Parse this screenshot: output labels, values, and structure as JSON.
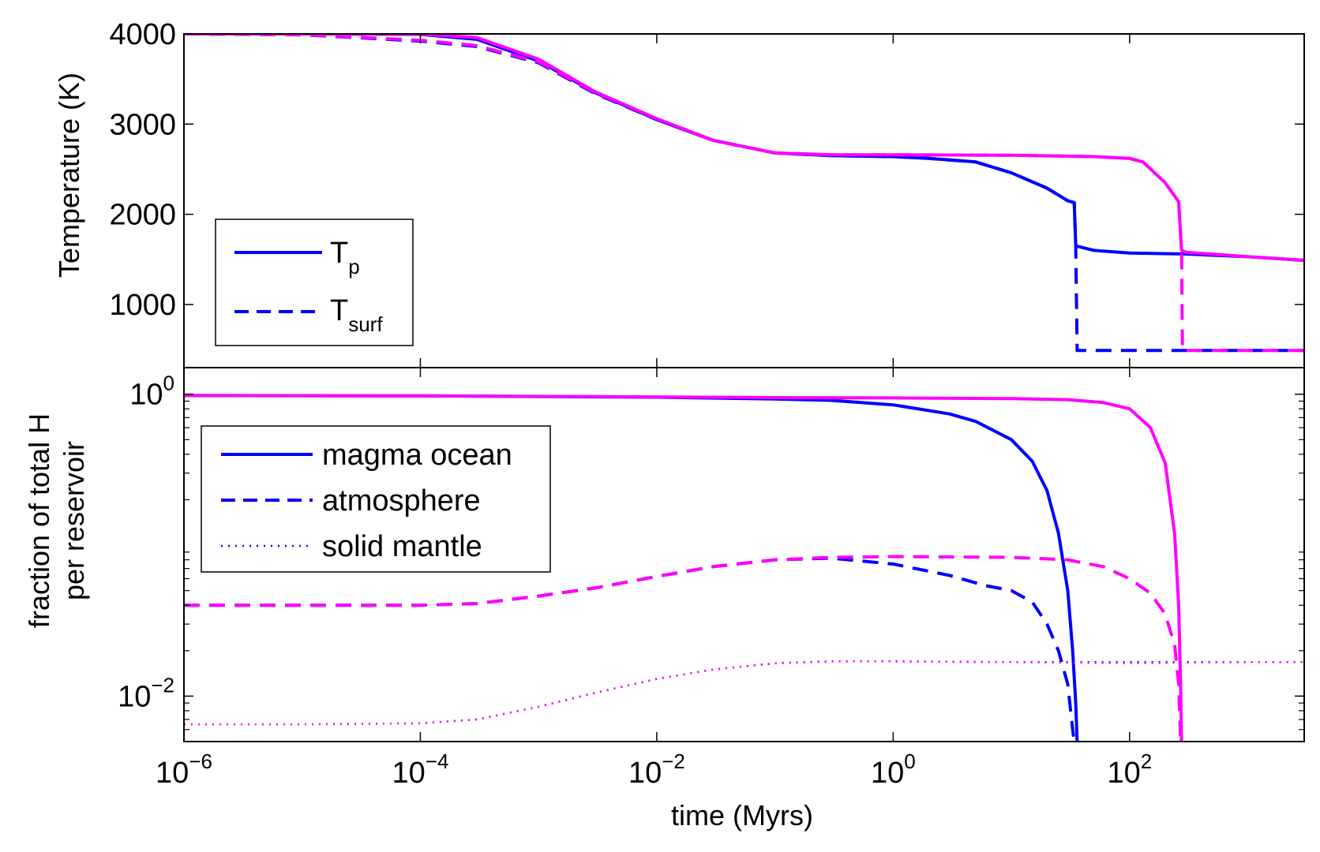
{
  "chart_data": [
    {
      "type": "line",
      "title": "",
      "xlabel": "",
      "ylabel": "Temperature (K)",
      "xscale": "log",
      "xlim": [
        1e-06,
        3000
      ],
      "ylim": [
        300,
        4000
      ],
      "yticks": [
        1000,
        2000,
        3000,
        4000
      ],
      "ytick_labels": [
        "1000",
        "2000",
        "3000",
        "4000"
      ],
      "grid": false,
      "legend_position": "lower-left",
      "legend": [
        {
          "label": "T",
          "sub": "p",
          "style": "solid"
        },
        {
          "label": "T",
          "sub": "surf",
          "style": "dashed"
        }
      ],
      "colors": {
        "case_a": "#0000ff",
        "case_b": "#ff00ff"
      },
      "series": [
        {
          "color": "#0000ff",
          "style": "solid",
          "points": [
            [
              1e-06,
              4000
            ],
            [
              1e-05,
              4000
            ],
            [
              0.0001,
              3995
            ],
            [
              0.0003,
              3940
            ],
            [
              0.001,
              3700
            ],
            [
              0.003,
              3350
            ],
            [
              0.01,
              3050
            ],
            [
              0.03,
              2820
            ],
            [
              0.1,
              2680
            ],
            [
              0.3,
              2650
            ],
            [
              1,
              2640
            ],
            [
              2,
              2620
            ],
            [
              5,
              2580
            ],
            [
              10,
              2460
            ],
            [
              20,
              2290
            ],
            [
              30,
              2150
            ],
            [
              34,
              2130
            ],
            [
              35,
              1650
            ],
            [
              50,
              1600
            ],
            [
              100,
              1570
            ],
            [
              300,
              1560
            ],
            [
              1000,
              1530
            ],
            [
              3000,
              1490
            ]
          ]
        },
        {
          "color": "#0000ff",
          "style": "dashed",
          "points": [
            [
              1e-06,
              4000
            ],
            [
              1e-05,
              3990
            ],
            [
              0.0001,
              3920
            ],
            [
              0.0003,
              3860
            ],
            [
              0.001,
              3680
            ],
            [
              0.003,
              3340
            ],
            [
              0.01,
              3050
            ],
            [
              0.03,
              2820
            ],
            [
              0.1,
              2680
            ],
            [
              0.3,
              2650
            ],
            [
              1,
              2640
            ],
            [
              2,
              2620
            ],
            [
              5,
              2580
            ],
            [
              10,
              2460
            ],
            [
              20,
              2290
            ],
            [
              30,
              2150
            ],
            [
              34,
              2130
            ],
            [
              35,
              1650
            ],
            [
              36,
              490
            ],
            [
              100,
              490
            ],
            [
              1000,
              490
            ],
            [
              3000,
              490
            ]
          ]
        },
        {
          "color": "#ff00ff",
          "style": "solid",
          "points": [
            [
              1e-06,
              4000
            ],
            [
              1e-05,
              4000
            ],
            [
              0.0001,
              3998
            ],
            [
              0.0003,
              3960
            ],
            [
              0.001,
              3720
            ],
            [
              0.003,
              3360
            ],
            [
              0.01,
              3060
            ],
            [
              0.03,
              2820
            ],
            [
              0.1,
              2680
            ],
            [
              0.3,
              2660
            ],
            [
              1,
              2660
            ],
            [
              10,
              2655
            ],
            [
              50,
              2640
            ],
            [
              100,
              2620
            ],
            [
              130,
              2580
            ],
            [
              200,
              2350
            ],
            [
              260,
              2140
            ],
            [
              275,
              1600
            ],
            [
              300,
              1580
            ],
            [
              1000,
              1530
            ],
            [
              3000,
              1490
            ]
          ]
        },
        {
          "color": "#ff00ff",
          "style": "dashed",
          "points": [
            [
              1e-06,
              4000
            ],
            [
              1e-05,
              3990
            ],
            [
              0.0001,
              3930
            ],
            [
              0.0003,
              3870
            ],
            [
              0.001,
              3690
            ],
            [
              0.003,
              3350
            ],
            [
              0.01,
              3060
            ],
            [
              0.03,
              2820
            ],
            [
              0.1,
              2680
            ],
            [
              0.3,
              2660
            ],
            [
              1,
              2660
            ],
            [
              10,
              2655
            ],
            [
              50,
              2640
            ],
            [
              100,
              2620
            ],
            [
              130,
              2580
            ],
            [
              200,
              2350
            ],
            [
              260,
              2140
            ],
            [
              275,
              1600
            ],
            [
              280,
              490
            ],
            [
              1000,
              490
            ],
            [
              3000,
              490
            ]
          ]
        }
      ]
    },
    {
      "type": "line",
      "title": "",
      "xlabel": "time (Myrs)",
      "ylabel": "fraction of total H\nper reservoir",
      "xscale": "log",
      "yscale": "log",
      "xlim": [
        1e-06,
        3000
      ],
      "ylim": [
        0.005,
        1.5
      ],
      "xticks": [
        1e-06,
        0.0001,
        0.01,
        1,
        100
      ],
      "xtick_labels": [
        {
          "base": "10",
          "exp": "−6"
        },
        {
          "base": "10",
          "exp": "−4"
        },
        {
          "base": "10",
          "exp": "−2"
        },
        {
          "base": "10",
          "exp": "0"
        },
        {
          "base": "10",
          "exp": "2"
        }
      ],
      "yticks": [
        0.01,
        1
      ],
      "ytick_labels": [
        {
          "base": "10",
          "exp": "−2"
        },
        {
          "base": "10",
          "exp": "0"
        }
      ],
      "grid": false,
      "legend_position": "upper-left",
      "legend": [
        {
          "label": "magma ocean",
          "style": "solid"
        },
        {
          "label": "atmosphere",
          "style": "dashed"
        },
        {
          "label": "solid mantle",
          "style": "dotted"
        }
      ],
      "series": [
        {
          "color": "#0000ff",
          "style": "solid",
          "points": [
            [
              1e-06,
              0.98
            ],
            [
              0.0001,
              0.975
            ],
            [
              0.01,
              0.955
            ],
            [
              0.1,
              0.93
            ],
            [
              0.3,
              0.91
            ],
            [
              1,
              0.85
            ],
            [
              3,
              0.74
            ],
            [
              5,
              0.66
            ],
            [
              10,
              0.5
            ],
            [
              15,
              0.36
            ],
            [
              20,
              0.23
            ],
            [
              25,
              0.12
            ],
            [
              30,
              0.05
            ],
            [
              33,
              0.02
            ],
            [
              35,
              0.009
            ],
            [
              36,
              0.005
            ]
          ]
        },
        {
          "color": "#0000ff",
          "style": "dashed",
          "points": [
            [
              1e-06,
              0.04
            ],
            [
              1e-05,
              0.04
            ],
            [
              0.0001,
              0.04
            ],
            [
              0.0003,
              0.041
            ],
            [
              0.001,
              0.046
            ],
            [
              0.003,
              0.052
            ],
            [
              0.01,
              0.062
            ],
            [
              0.03,
              0.072
            ],
            [
              0.1,
              0.08
            ],
            [
              0.3,
              0.082
            ],
            [
              1,
              0.075
            ],
            [
              3,
              0.063
            ],
            [
              6,
              0.054
            ],
            [
              10,
              0.05
            ],
            [
              15,
              0.042
            ],
            [
              20,
              0.03
            ],
            [
              25,
              0.02
            ],
            [
              30,
              0.012
            ],
            [
              33,
              0.006
            ],
            [
              34,
              0.005
            ]
          ]
        },
        {
          "color": "#0000ff",
          "style": "dotted",
          "points": [
            [
              1e-06,
              0.0065
            ],
            [
              1e-05,
              0.0065
            ],
            [
              0.0001,
              0.0066
            ],
            [
              0.0003,
              0.007
            ],
            [
              0.001,
              0.0085
            ],
            [
              0.003,
              0.0105
            ],
            [
              0.01,
              0.013
            ],
            [
              0.03,
              0.015
            ],
            [
              0.1,
              0.0165
            ],
            [
              0.3,
              0.017
            ],
            [
              1,
              0.017
            ],
            [
              10,
              0.0168
            ],
            [
              30,
              0.0168
            ],
            [
              100,
              0.0168
            ],
            [
              1000,
              0.0168
            ],
            [
              3000,
              0.0168
            ]
          ]
        },
        {
          "color": "#ff00ff",
          "style": "solid",
          "points": [
            [
              1e-06,
              0.98
            ],
            [
              0.0001,
              0.975
            ],
            [
              0.01,
              0.96
            ],
            [
              0.1,
              0.95
            ],
            [
              1,
              0.945
            ],
            [
              10,
              0.935
            ],
            [
              30,
              0.92
            ],
            [
              60,
              0.88
            ],
            [
              100,
              0.8
            ],
            [
              150,
              0.6
            ],
            [
              200,
              0.35
            ],
            [
              240,
              0.12
            ],
            [
              260,
              0.04
            ],
            [
              270,
              0.012
            ],
            [
              275,
              0.005
            ]
          ]
        },
        {
          "color": "#ff00ff",
          "style": "dashed",
          "points": [
            [
              1e-06,
              0.04
            ],
            [
              1e-05,
              0.04
            ],
            [
              0.0001,
              0.04
            ],
            [
              0.0003,
              0.041
            ],
            [
              0.001,
              0.046
            ],
            [
              0.003,
              0.052
            ],
            [
              0.01,
              0.062
            ],
            [
              0.03,
              0.072
            ],
            [
              0.1,
              0.08
            ],
            [
              0.3,
              0.083
            ],
            [
              1,
              0.084
            ],
            [
              10,
              0.083
            ],
            [
              30,
              0.08
            ],
            [
              60,
              0.072
            ],
            [
              100,
              0.06
            ],
            [
              150,
              0.048
            ],
            [
              200,
              0.035
            ],
            [
              240,
              0.022
            ],
            [
              260,
              0.012
            ],
            [
              270,
              0.005
            ]
          ]
        },
        {
          "color": "#ff00ff",
          "style": "dotted",
          "points": [
            [
              1e-06,
              0.0065
            ],
            [
              1e-05,
              0.0065
            ],
            [
              0.0001,
              0.0066
            ],
            [
              0.0003,
              0.007
            ],
            [
              0.001,
              0.0085
            ],
            [
              0.003,
              0.0105
            ],
            [
              0.01,
              0.013
            ],
            [
              0.03,
              0.015
            ],
            [
              0.1,
              0.0165
            ],
            [
              0.3,
              0.017
            ],
            [
              1,
              0.017
            ],
            [
              10,
              0.0168
            ],
            [
              100,
              0.0165
            ],
            [
              1000,
              0.0168
            ],
            [
              3000,
              0.0168
            ]
          ]
        }
      ]
    }
  ]
}
